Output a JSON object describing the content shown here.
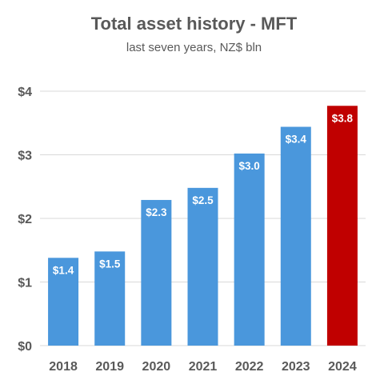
{
  "chart_data": {
    "type": "bar",
    "title": "Total asset history - MFT",
    "subtitle": "last seven years, NZ$ bln",
    "categories": [
      "2018",
      "2019",
      "2020",
      "2021",
      "2022",
      "2023",
      "2024"
    ],
    "values": [
      1.38,
      1.48,
      2.29,
      2.48,
      3.02,
      3.44,
      3.77
    ],
    "data_labels": [
      "$1.4",
      "$1.5",
      "$2.3",
      "$2.5",
      "$3.0",
      "$3.4",
      "$3.8"
    ],
    "y_ticks": [
      0,
      1,
      2,
      3,
      4
    ],
    "y_tick_labels": [
      "$0",
      "$1",
      "$2",
      "$3",
      "$4"
    ],
    "ylim": [
      0,
      4
    ],
    "grid": true,
    "legend": "none",
    "colors": {
      "bar": "#4a97dc",
      "highlight": "#c00000",
      "grid": "#d9d9d9",
      "text": "#595959"
    },
    "highlight_index": 6
  }
}
